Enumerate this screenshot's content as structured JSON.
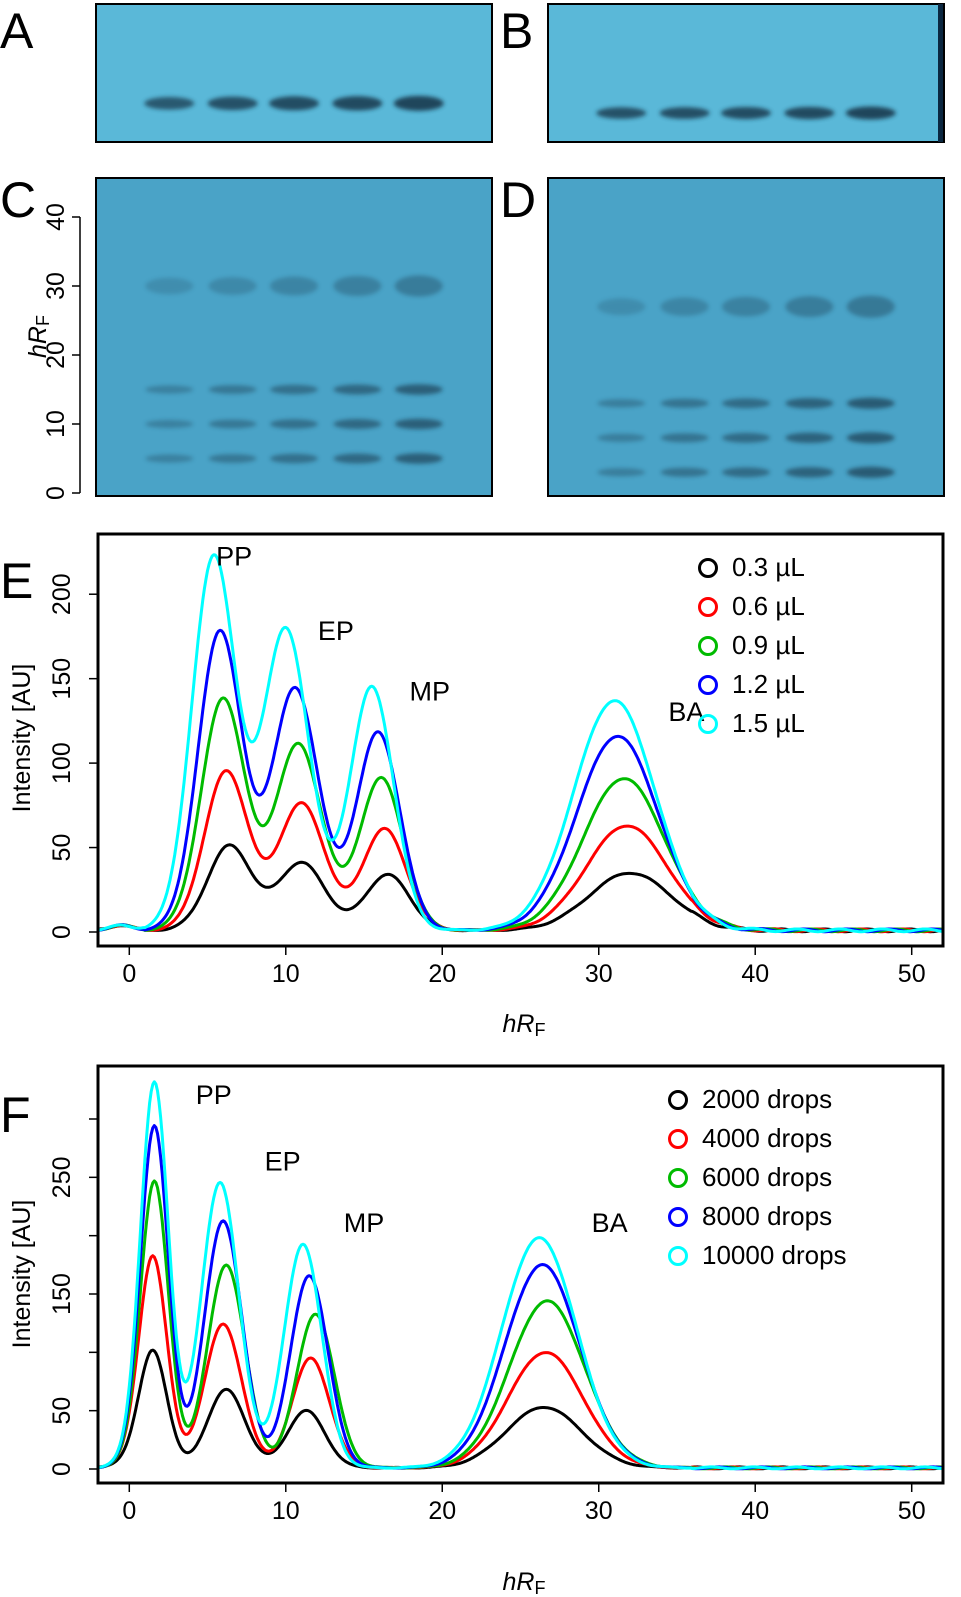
{
  "figure": {
    "panels": {
      "A": {
        "label": "A"
      },
      "B": {
        "label": "B"
      },
      "C": {
        "label": "C"
      },
      "D": {
        "label": "D"
      },
      "E": {
        "label": "E"
      },
      "F": {
        "label": "F"
      }
    },
    "plate_axis": {
      "ylabel_italic": "hR",
      "ylabel_sub": "F",
      "ticks": [
        "0",
        "10",
        "20",
        "30",
        "40"
      ],
      "tick_values": [
        0,
        10,
        20,
        30,
        40
      ]
    },
    "colors": {
      "plate": "#5ab8d8",
      "plate_dark": "#4aa3c7",
      "band": "#1c3f55",
      "series": [
        "#000000",
        "#ff0000",
        "#00bb00",
        "#0000ff",
        "#00ffff"
      ]
    },
    "plates": [
      {
        "id": "A",
        "type": "standard",
        "band_hrf": [
          10
        ],
        "intensity": [
          0.6,
          0.75,
          0.85,
          0.9,
          1.0
        ]
      },
      {
        "id": "B",
        "type": "standard",
        "band_hrf": [
          10
        ],
        "intensity": [
          0.75,
          0.8,
          0.85,
          0.9,
          1.0
        ]
      },
      {
        "id": "C",
        "type": "mixture",
        "band_hrf": [
          5,
          10,
          15,
          30
        ],
        "intensity": [
          0.3,
          0.45,
          0.6,
          0.75,
          0.9
        ]
      },
      {
        "id": "D",
        "type": "mixture",
        "band_hrf": [
          3,
          8,
          13,
          27
        ],
        "intensity": [
          0.35,
          0.55,
          0.7,
          0.85,
          1.0
        ]
      }
    ]
  },
  "chart_data": [
    {
      "type": "line",
      "panel": "E",
      "xlabel_italic": "hR",
      "xlabel_sub": "F",
      "ylabel": "Intensity [AU]",
      "xlim": [
        -2,
        52
      ],
      "ylim": [
        0,
        225
      ],
      "xticks": [
        0,
        10,
        20,
        30,
        40,
        50
      ],
      "yticks": [
        0,
        50,
        100,
        150,
        200
      ],
      "legend_position": "top-right",
      "peak_labels": [
        {
          "text": "PP",
          "x": 6.7,
          "y": 217
        },
        {
          "text": "EP",
          "x": 13.2,
          "y": 173
        },
        {
          "text": "MP",
          "x": 19.2,
          "y": 137
        },
        {
          "text": "BA",
          "x": 35.6,
          "y": 125
        }
      ],
      "peaks_x": [
        [
          6.4,
          11.0,
          16.5,
          32.0
        ],
        [
          6.2,
          11.0,
          16.3,
          31.8
        ],
        [
          6.0,
          10.8,
          16.1,
          31.6
        ],
        [
          5.8,
          10.6,
          15.9,
          31.2
        ],
        [
          5.4,
          10.0,
          15.5,
          31.0
        ]
      ],
      "series": [
        {
          "name": "0.3 µL",
          "color": "#000000",
          "peaks": [
            50,
            40,
            33,
            34
          ]
        },
        {
          "name": "0.6 µL",
          "color": "#ff0000",
          "peaks": [
            94,
            75,
            60,
            62
          ]
        },
        {
          "name": "0.9 µL",
          "color": "#00bb00",
          "peaks": [
            137,
            110,
            90,
            90
          ]
        },
        {
          "name": "1.2 µL",
          "color": "#0000ff",
          "peaks": [
            177,
            143,
            117,
            115
          ]
        },
        {
          "name": "1.5 µL",
          "color": "#00ffff",
          "peaks": [
            221,
            178,
            144,
            136
          ]
        }
      ],
      "widths": [
        1.4,
        1.5,
        1.4,
        2.6
      ]
    },
    {
      "type": "line",
      "panel": "F",
      "xlabel_italic": "hR",
      "xlabel_sub": "F",
      "ylabel": "Intensity [AU]",
      "xlim": [
        -2,
        52
      ],
      "ylim": [
        0,
        330
      ],
      "xticks": [
        0,
        10,
        20,
        30,
        40,
        50
      ],
      "yticks": [
        0,
        50,
        150,
        250
      ],
      "yticks_minor": [
        100,
        200,
        300
      ],
      "legend_position": "top-right",
      "peak_labels": [
        {
          "text": "PP",
          "x": 5.4,
          "y": 313
        },
        {
          "text": "EP",
          "x": 9.8,
          "y": 256
        },
        {
          "text": "MP",
          "x": 15.0,
          "y": 203
        },
        {
          "text": "BA",
          "x": 30.7,
          "y": 203
        }
      ],
      "peaks_x": [
        [
          1.5,
          6.2,
          11.3,
          26.5
        ],
        [
          1.5,
          6.0,
          11.6,
          26.6
        ],
        [
          1.6,
          6.2,
          11.9,
          26.7
        ],
        [
          1.6,
          6.0,
          11.5,
          26.4
        ],
        [
          1.6,
          5.8,
          11.1,
          26.2
        ]
      ],
      "series": [
        {
          "name": "2000 drops",
          "color": "#000000",
          "peaks": [
            101,
            67,
            49,
            52
          ]
        },
        {
          "name": "4000 drops",
          "color": "#ff0000",
          "peaks": [
            182,
            123,
            94,
            99
          ]
        },
        {
          "name": "6000 drops",
          "color": "#00bb00",
          "peaks": [
            246,
            174,
            132,
            143
          ]
        },
        {
          "name": "8000 drops",
          "color": "#0000ff",
          "peaks": [
            293,
            212,
            165,
            174
          ]
        },
        {
          "name": "10000 drops",
          "color": "#00ffff",
          "peaks": [
            330,
            245,
            192,
            197
          ]
        }
      ],
      "widths": [
        0.9,
        1.2,
        1.2,
        2.4
      ]
    }
  ]
}
